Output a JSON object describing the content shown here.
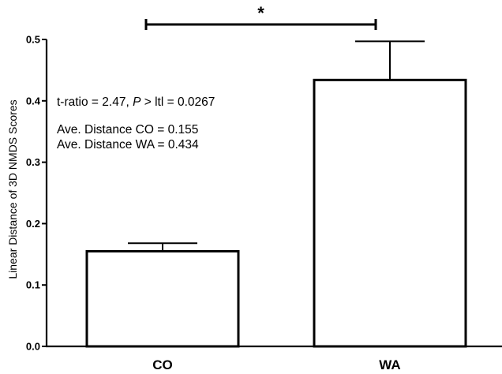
{
  "chart_data": {
    "type": "bar",
    "title": "",
    "xlabel": "",
    "ylabel": "Linear Distance of 3D NMDS Scores",
    "categories": [
      "CO",
      "WA"
    ],
    "values": [
      0.155,
      0.434
    ],
    "error_upper": [
      0.168,
      0.497
    ],
    "ylim": [
      0,
      0.5
    ],
    "yticks": [
      0.0,
      0.1,
      0.2,
      0.3,
      0.4,
      0.5
    ],
    "ytick_labels": [
      "0.0",
      "0.1",
      "0.2",
      "0.3",
      "0.4",
      "0.5"
    ],
    "grid": false,
    "legend": "none",
    "bar_fill": "#ffffff",
    "bar_stroke": "#000000",
    "significance": {
      "between": [
        "CO",
        "WA"
      ],
      "marker": "*"
    },
    "annotations": {
      "t_pre": "t-ratio = 2.47, ",
      "t_italic": "P",
      "t_post": " > ltl = 0.0267",
      "line_co": "Ave.  Distance CO = 0.155",
      "line_wa": "Ave.  Distance WA = 0.434"
    }
  }
}
